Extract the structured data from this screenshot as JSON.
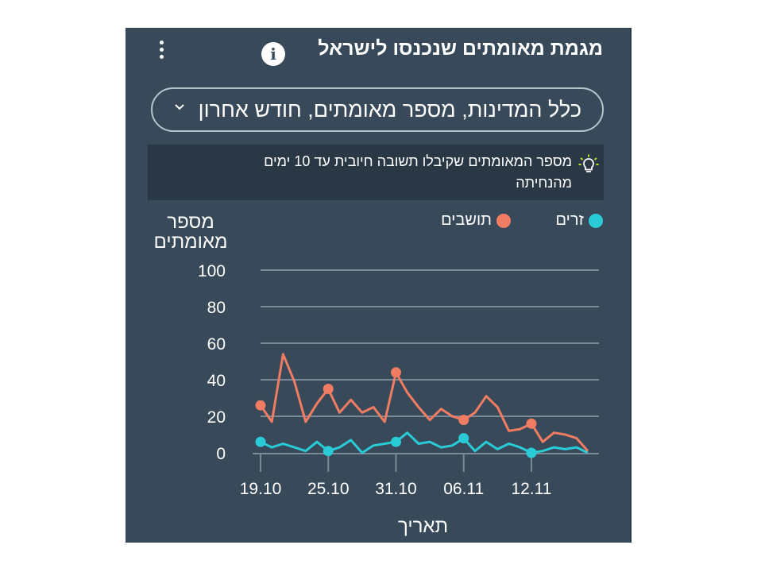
{
  "header": {
    "title": "מגמת מאומתים שנכנסו לישראל",
    "info_icon": "info-icon",
    "menu_icon": "kebab-menu-icon"
  },
  "filter": {
    "label": "כלל המדינות, מספר מאומתים, חודש אחרון",
    "icon": "chevron-down-icon"
  },
  "tip": {
    "text": "מספר המאומתים שקיבלו תשובה חיובית עד 10 ימים מהנחיתה",
    "icon": "lightbulb-icon"
  },
  "colors": {
    "card_bg": "#384a59",
    "tip_bg": "#2a3846",
    "residents": "#f07c63",
    "foreigners": "#29ccd6",
    "grid": "#7a8995"
  },
  "chart_data": {
    "type": "line",
    "ylabel": "מספר מאומתים",
    "xlabel": "תאריך",
    "ylim": [
      0,
      100
    ],
    "yticks": [
      "0",
      "20",
      "40",
      "60",
      "80",
      "100"
    ],
    "xtick_labels": [
      "19.10",
      "25.10",
      "31.10",
      "06.11",
      "12.11"
    ],
    "xtick_index": [
      0,
      6,
      12,
      18,
      24
    ],
    "grid": true,
    "legend_position": "top",
    "series": [
      {
        "name": "זרים",
        "color": "#29ccd6",
        "marker_index": [
          0,
          6,
          12,
          18,
          24
        ],
        "values": [
          6,
          3,
          5,
          3,
          1,
          6,
          1,
          3,
          7,
          0,
          4,
          5,
          6,
          11,
          5,
          6,
          3,
          4,
          8,
          1,
          6,
          2,
          5,
          3,
          0,
          1,
          3,
          2,
          3,
          0
        ]
      },
      {
        "name": "תושבים",
        "color": "#f07c63",
        "marker_index": [
          0,
          6,
          12,
          18,
          24
        ],
        "values": [
          26,
          17,
          54,
          39,
          17,
          27,
          35,
          22,
          29,
          22,
          25,
          17,
          44,
          33,
          25,
          18,
          24,
          20,
          18,
          22,
          31,
          25,
          12,
          13,
          16,
          6,
          11,
          10,
          8,
          1
        ]
      }
    ]
  }
}
